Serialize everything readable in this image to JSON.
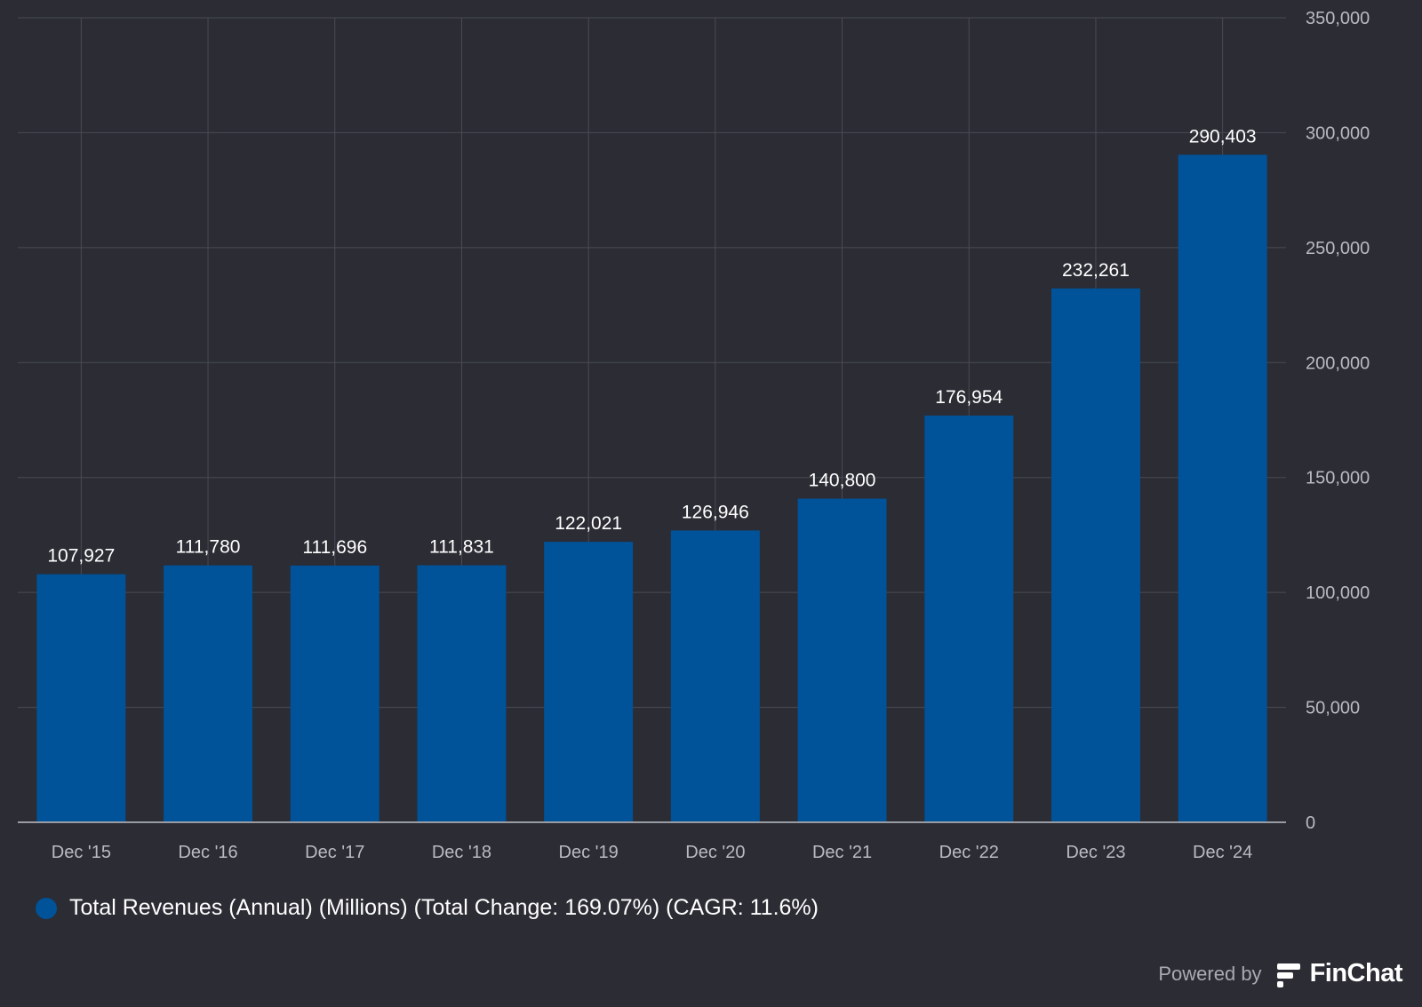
{
  "colors": {
    "background": "#2b2c34",
    "bar": "#005299",
    "grid": "#4a4b54",
    "axis_line": "#9a9ca4",
    "tick_text": "#b9bbc3",
    "label_text": "#ffffff"
  },
  "chart_data": {
    "type": "bar",
    "categories": [
      "Dec '15",
      "Dec '16",
      "Dec '17",
      "Dec '18",
      "Dec '19",
      "Dec '20",
      "Dec '21",
      "Dec '22",
      "Dec '23",
      "Dec '24"
    ],
    "series": [
      {
        "name": "Total Revenues (Annual) (Millions) (Total Change: 169.07%) (CAGR: 11.6%)",
        "values": [
          107927,
          111780,
          111696,
          111831,
          122021,
          126946,
          140800,
          176954,
          232261,
          290403
        ]
      }
    ],
    "data_labels": [
      "107,927",
      "111,780",
      "111,696",
      "111,831",
      "122,021",
      "126,946",
      "140,800",
      "176,954",
      "232,261",
      "290,403"
    ],
    "ylim": [
      0,
      350000
    ],
    "yticks": [
      0,
      50000,
      100000,
      150000,
      200000,
      250000,
      300000,
      350000
    ],
    "ytick_labels": [
      "0",
      "50,000",
      "100,000",
      "150,000",
      "200,000",
      "250,000",
      "300,000",
      "350,000"
    ],
    "y_axis_position": "right",
    "grid": true,
    "legend_position": "bottom-left"
  },
  "legend": {
    "label": "Total Revenues (Annual) (Millions) (Total Change: 169.07%) (CAGR: 11.6%)"
  },
  "branding": {
    "powered_by": "Powered by",
    "name": "FinChat",
    "icon": "finchat-logo-icon"
  }
}
